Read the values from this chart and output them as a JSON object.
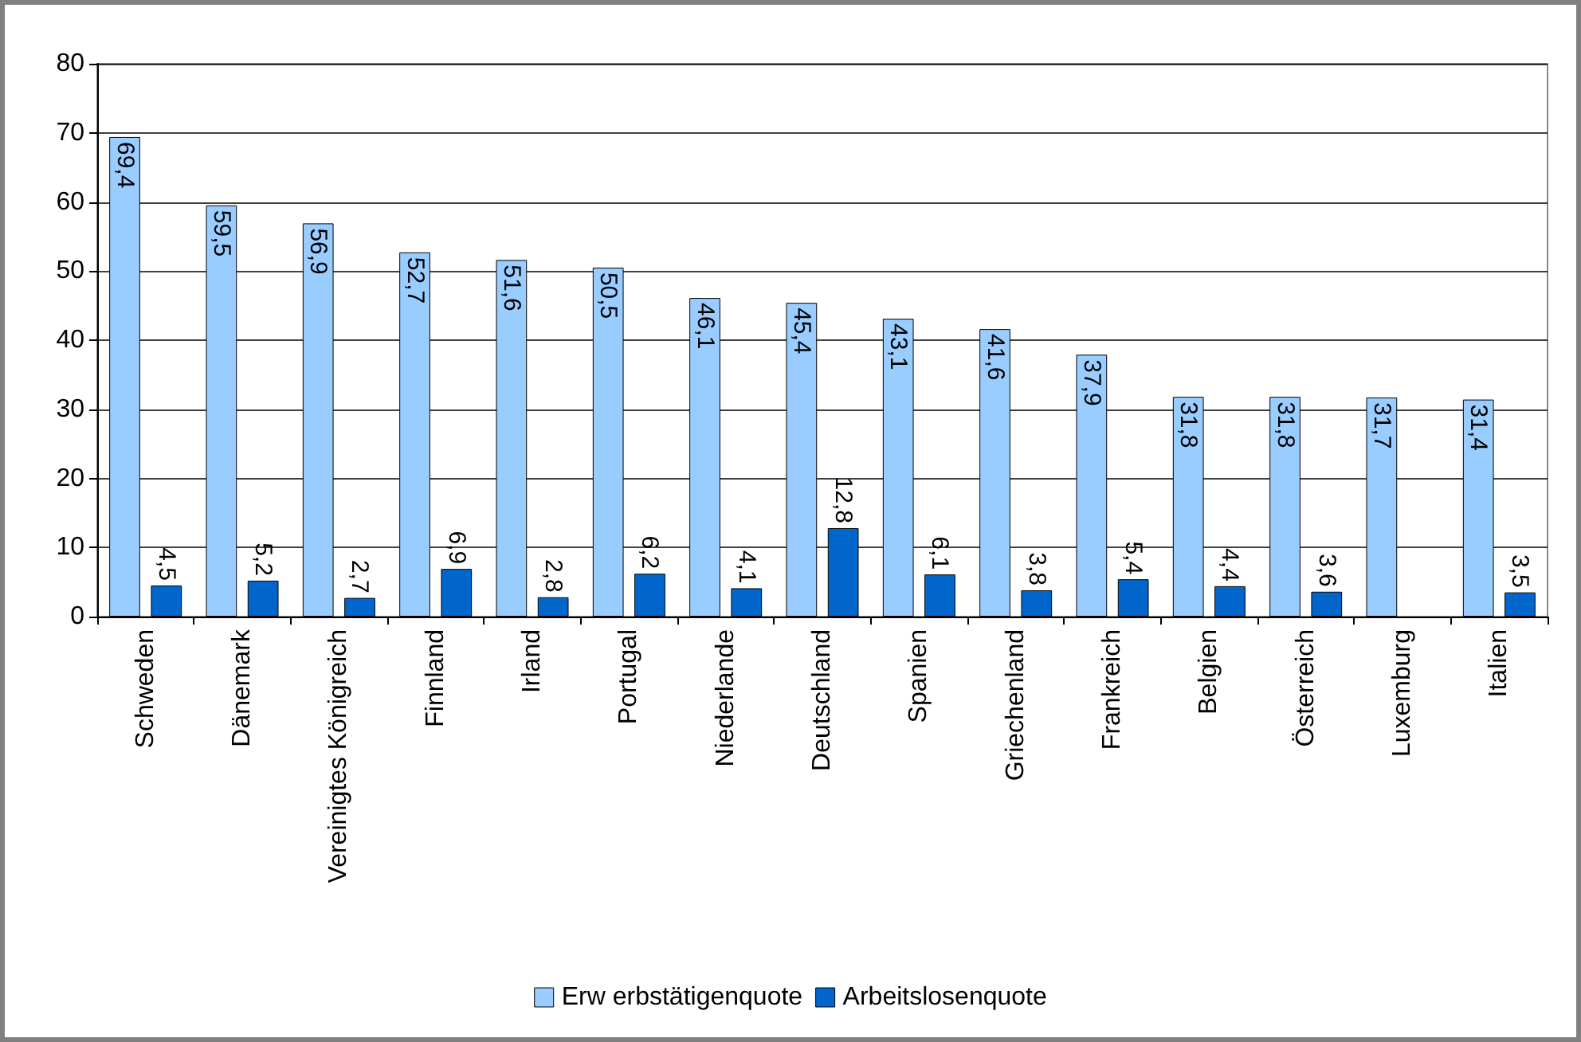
{
  "chart_data": {
    "type": "bar",
    "categories": [
      "Schweden",
      "Dänemark",
      "Vereinigtes Königreich",
      "Finnland",
      "Irland",
      "Portugal",
      "Niederlande",
      "Deutschland",
      "Spanien",
      "Griechenland",
      "Frankreich",
      "Belgien",
      "Österreich",
      "Luxemburg",
      "Italien"
    ],
    "series": [
      {
        "name": "Erw erbstätigenquote",
        "color": "#99ccff",
        "values": [
          69.4,
          59.5,
          56.9,
          52.7,
          51.6,
          50.5,
          46.1,
          45.4,
          43.1,
          41.6,
          37.9,
          31.8,
          31.8,
          31.7,
          31.4
        ],
        "value_labels": [
          "69,4",
          "59,5",
          "56,9",
          "52,7",
          "51,6",
          "50,5",
          "46,1",
          "45,4",
          "43,1",
          "41,6",
          "37,9",
          "31,8",
          "31,8",
          "31,7",
          "31,4"
        ]
      },
      {
        "name": "Arbeitslosenquote",
        "color": "#0066cc",
        "values": [
          4.5,
          5.2,
          2.7,
          6.9,
          2.8,
          6.2,
          4.1,
          12.8,
          6.1,
          3.8,
          5.4,
          4.4,
          3.6,
          null,
          3.5
        ],
        "value_labels": [
          "4,5",
          "5,2",
          "2,7",
          "6,9",
          "2,8",
          "6,2",
          "4,1",
          "12,8",
          "6,1",
          "3,8",
          "5,4",
          "4,4",
          "3,6",
          null,
          "3,5"
        ]
      }
    ],
    "ylim": [
      0,
      80
    ],
    "yticks": [
      0,
      10,
      20,
      30,
      40,
      50,
      60,
      70,
      80
    ],
    "grid": "y",
    "legend": "bottom"
  }
}
